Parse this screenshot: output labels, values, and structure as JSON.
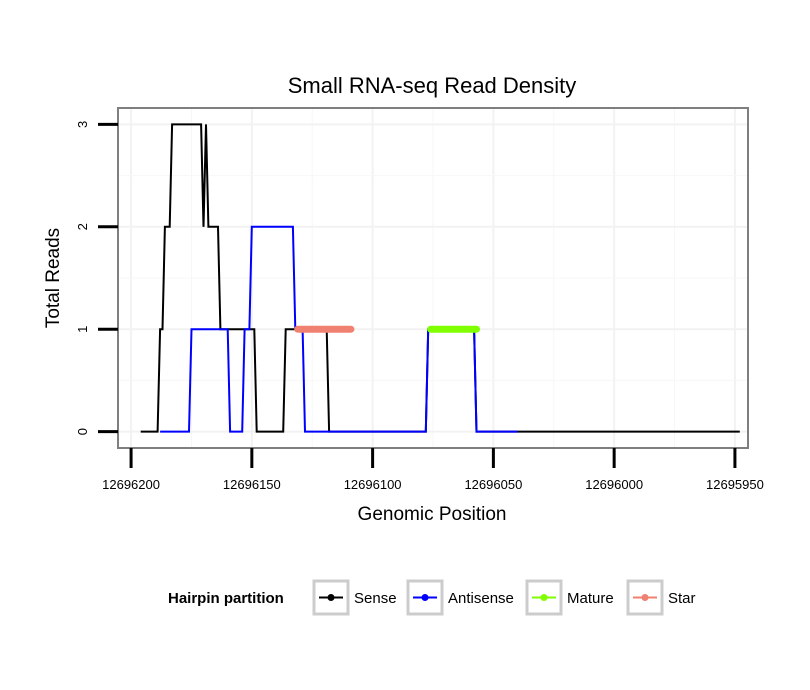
{
  "chart_data": {
    "type": "line",
    "title": "Small RNA-seq Read Density",
    "xlabel": "Genomic Position",
    "ylabel": "Total Reads",
    "x_reversed": true,
    "xlim": [
      12696205,
      12695945
    ],
    "ylim": [
      -0.15,
      3.15
    ],
    "x_ticks": [
      12696200,
      12696150,
      12696100,
      12696050,
      12696000,
      12695950
    ],
    "x_tick_labels": [
      "12696200",
      "12696150",
      "12696100",
      "12696050",
      "12696000",
      "12695950"
    ],
    "y_ticks": [
      0,
      1,
      2,
      3
    ],
    "y_tick_labels": [
      "0",
      "1",
      "2",
      "3"
    ],
    "grid": true,
    "series": [
      {
        "name": "Sense",
        "color": "#000000",
        "points": [
          [
            12696196,
            0
          ],
          [
            12696189,
            0
          ],
          [
            12696188,
            1
          ],
          [
            12696187,
            1
          ],
          [
            12696186,
            2
          ],
          [
            12696184,
            2
          ],
          [
            12696183,
            3
          ],
          [
            12696171,
            3
          ],
          [
            12696170,
            2
          ],
          [
            12696169,
            3
          ],
          [
            12696168,
            2
          ],
          [
            12696164,
            2
          ],
          [
            12696163,
            1
          ],
          [
            12696149,
            1
          ],
          [
            12696148,
            0
          ],
          [
            12696137,
            0
          ],
          [
            12696136,
            1
          ],
          [
            12696119,
            1
          ],
          [
            12696118,
            0
          ],
          [
            12696078,
            0
          ],
          [
            12696077,
            1
          ],
          [
            12696058,
            1
          ],
          [
            12696057,
            0
          ],
          [
            12695948,
            0
          ]
        ]
      },
      {
        "name": "Antisense",
        "color": "#0000ff",
        "points": [
          [
            12696188,
            0
          ],
          [
            12696176,
            0
          ],
          [
            12696175,
            1
          ],
          [
            12696160,
            1
          ],
          [
            12696159,
            0
          ],
          [
            12696154,
            0
          ],
          [
            12696153,
            1
          ],
          [
            12696151,
            1
          ],
          [
            12696150,
            2
          ],
          [
            12696133,
            2
          ],
          [
            12696132,
            1
          ],
          [
            12696129,
            1
          ],
          [
            12696128,
            0
          ],
          [
            12696078,
            0
          ],
          [
            12696077,
            1
          ],
          [
            12696058,
            1
          ],
          [
            12696057,
            0
          ],
          [
            12696040,
            0
          ]
        ]
      },
      {
        "name": "Mature",
        "color": "#7fff00",
        "points": [
          [
            12696076,
            1
          ],
          [
            12696057,
            1
          ]
        ]
      },
      {
        "name": "Star",
        "color": "#f08070",
        "points": [
          [
            12696131,
            1
          ],
          [
            12696109,
            1
          ]
        ]
      }
    ],
    "legend": {
      "title": "Hairpin partition",
      "position": "bottom",
      "entries": [
        "Sense",
        "Antisense",
        "Mature",
        "Star"
      ]
    }
  }
}
